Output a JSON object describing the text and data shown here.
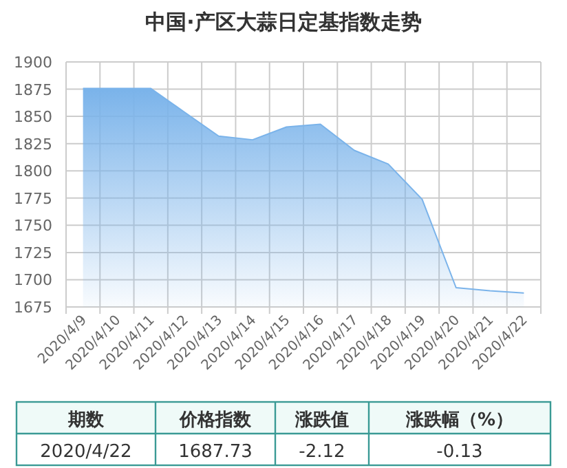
{
  "chart_data": {
    "type": "area",
    "title": "中国·产区大蒜日定基指数走势",
    "categories": [
      "2020/4/9",
      "2020/4/10",
      "2020/4/11",
      "2020/4/12",
      "2020/4/13",
      "2020/4/14",
      "2020/4/15",
      "2020/4/16",
      "2020/4/17",
      "2020/4/18",
      "2020/4/19",
      "2020/4/20",
      "2020/4/21",
      "2020/4/22"
    ],
    "values": [
      1875.6,
      1875.6,
      1875.6,
      1853.7,
      1831.9,
      1828.5,
      1840.3,
      1842.8,
      1818.8,
      1806.2,
      1773.8,
      1692.7,
      1689.85,
      1687.73
    ],
    "color": "#7ab3ea",
    "ylim": [
      1675,
      1900
    ],
    "yticks": [
      1675,
      1700,
      1725,
      1750,
      1775,
      1800,
      1825,
      1850,
      1875,
      1900
    ],
    "grid": true,
    "annotations": [
      "期数",
      "价格指数",
      "涨跌值",
      "涨跌幅（%）",
      "2020/4/22",
      "1687.73",
      "-2.12",
      "-0.13"
    ]
  }
}
